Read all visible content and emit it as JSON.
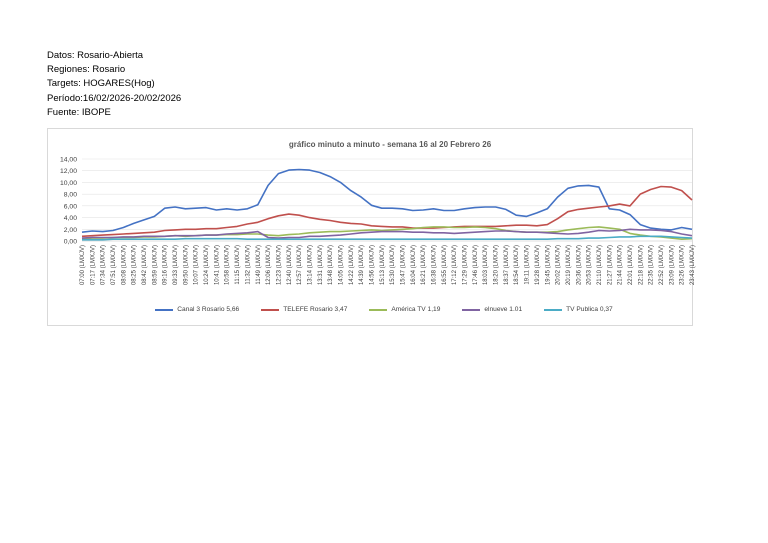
{
  "meta": {
    "datos": "Datos: Rosario-Abierta",
    "regiones": "Regiones: Rosario",
    "targets": "Targets: HOGARES(Hog)",
    "periodo": "Período:16/02/2026-20/02/2026",
    "fuente": "Fuente: IBOPE"
  },
  "chart_data": {
    "type": "line",
    "title": "gráfico minuto a minuto - semana 16 al 20 Febrero 26",
    "ylim": [
      0,
      14
    ],
    "yticks": [
      "0,00",
      "2,00",
      "4,00",
      "6,00",
      "8,00",
      "10,00",
      "12,00",
      "14,00"
    ],
    "grid": true,
    "legend_position": "bottom",
    "categories": [
      "07:00 (LMXJV)",
      "07:17 (LMXJV)",
      "07:34 (LMXJV)",
      "07:51 (LMXJV)",
      "08:08 (LMXJV)",
      "08:25 (LMXJV)",
      "08:42 (LMXJV)",
      "08:59 (LMXJV)",
      "09:16 (LMXJV)",
      "09:33 (LMXJV)",
      "09:50 (LMXJV)",
      "10:07 (LMXJV)",
      "10:24 (LMXJV)",
      "10:41 (LMXJV)",
      "10:58 (LMXJV)",
      "11:15 (LMXJV)",
      "11:32 (LMXJV)",
      "11:49 (LMXJV)",
      "12:06 (LMXJV)",
      "12:23 (LMXJV)",
      "12:40 (LMXJV)",
      "12:57 (LMXJV)",
      "13:14 (LMXJV)",
      "13:31 (LMXJV)",
      "13:48 (LMXJV)",
      "14:05 (LMXJV)",
      "14:22 (LMXJV)",
      "14:39 (LMXJV)",
      "14:56 (LMXJV)",
      "15:13 (LMXJV)",
      "15:30 (LMXJV)",
      "15:47 (LMXJV)",
      "16:04 (LMXJV)",
      "16:21 (LMXJV)",
      "16:38 (LMXJV)",
      "16:55 (LMXJV)",
      "17:12 (LMXJV)",
      "17:29 (LMXJV)",
      "17:46 (LMXJV)",
      "18:03 (LMXJV)",
      "18:20 (LMXJV)",
      "18:37 (LMXJV)",
      "18:54 (LMXJV)",
      "19:11 (LMXJV)",
      "19:28 (LMXJV)",
      "19:45 (LMXJV)",
      "20:02 (LMXJV)",
      "20:19 (LMXJV)",
      "20:36 (LMXJV)",
      "20:53 (LMXJV)",
      "21:10 (LMXJV)",
      "21:27 (LMXJV)",
      "21:44 (LMXJV)",
      "22:01 (LMXJV)",
      "22:18 (LMXJV)",
      "22:35 (LMXJV)",
      "22:52 (LMXJV)",
      "23:09 (LMXJV)",
      "23:26 (LMXJV)",
      "23:43 (LMXJV)"
    ],
    "series": [
      {
        "name": "Canal 3 Rosario 5,66",
        "color": "#4472c4",
        "values": [
          1.5,
          1.7,
          1.6,
          1.8,
          2.3,
          3.0,
          3.6,
          4.2,
          5.6,
          5.8,
          5.5,
          5.6,
          5.7,
          5.3,
          5.5,
          5.3,
          5.5,
          6.2,
          9.5,
          11.5,
          12.1,
          12.2,
          12.1,
          11.7,
          11.0,
          10.0,
          8.6,
          7.5,
          6.1,
          5.6,
          5.6,
          5.5,
          5.2,
          5.3,
          5.5,
          5.2,
          5.2,
          5.5,
          5.7,
          5.8,
          5.8,
          5.4,
          4.4,
          4.2,
          4.8,
          5.5,
          7.5,
          9.0,
          9.4,
          9.5,
          9.2,
          5.5,
          5.3,
          4.5,
          2.8,
          2.2,
          2.0,
          1.9,
          2.3,
          2.0
        ]
      },
      {
        "name": "TELEFE Rosario 3,47",
        "color": "#c0504d",
        "values": [
          0.8,
          0.9,
          1.0,
          1.1,
          1.2,
          1.3,
          1.4,
          1.5,
          1.8,
          1.9,
          2.0,
          2.0,
          2.1,
          2.1,
          2.3,
          2.5,
          2.9,
          3.2,
          3.8,
          4.3,
          4.6,
          4.4,
          4.0,
          3.7,
          3.5,
          3.2,
          3.0,
          2.9,
          2.6,
          2.5,
          2.4,
          2.4,
          2.2,
          2.2,
          2.2,
          2.3,
          2.4,
          2.5,
          2.5,
          2.5,
          2.5,
          2.6,
          2.7,
          2.7,
          2.6,
          2.8,
          3.8,
          5.0,
          5.4,
          5.6,
          5.8,
          6.0,
          6.3,
          6.0,
          8.0,
          8.8,
          9.3,
          9.2,
          8.6,
          7.0
        ]
      },
      {
        "name": "América TV 1,19",
        "color": "#9bbb59",
        "values": [
          0.4,
          0.5,
          0.5,
          0.6,
          0.6,
          0.6,
          0.7,
          0.7,
          0.8,
          0.9,
          0.8,
          0.9,
          1.0,
          1.0,
          1.1,
          1.1,
          1.2,
          1.2,
          1.0,
          0.9,
          1.1,
          1.2,
          1.4,
          1.5,
          1.6,
          1.6,
          1.7,
          1.8,
          1.9,
          1.8,
          1.9,
          2.0,
          2.1,
          2.3,
          2.4,
          2.4,
          2.3,
          2.3,
          2.4,
          2.3,
          2.1,
          1.8,
          1.6,
          1.5,
          1.5,
          1.5,
          1.6,
          1.9,
          2.1,
          2.3,
          2.4,
          2.2,
          2.0,
          1.3,
          1.0,
          0.8,
          0.7,
          0.5,
          0.3,
          0.4
        ]
      },
      {
        "name": "elnueve 1.01",
        "color": "#8064a2",
        "values": [
          0.5,
          0.6,
          0.6,
          0.6,
          0.7,
          0.7,
          0.8,
          0.8,
          0.8,
          0.9,
          0.9,
          0.9,
          1.0,
          1.0,
          1.2,
          1.3,
          1.4,
          1.6,
          0.6,
          0.5,
          0.6,
          0.6,
          0.8,
          0.8,
          0.9,
          1.0,
          1.2,
          1.4,
          1.5,
          1.6,
          1.6,
          1.6,
          1.5,
          1.5,
          1.4,
          1.4,
          1.3,
          1.4,
          1.5,
          1.6,
          1.7,
          1.7,
          1.6,
          1.5,
          1.5,
          1.4,
          1.3,
          1.2,
          1.3,
          1.5,
          1.8,
          1.7,
          1.8,
          2.0,
          1.9,
          1.9,
          1.8,
          1.6,
          1.2,
          0.9
        ]
      },
      {
        "name": "TV Publica 0,37",
        "color": "#4bacc6",
        "values": [
          0.2,
          0.2,
          0.2,
          0.3,
          0.3,
          0.3,
          0.3,
          0.3,
          0.3,
          0.3,
          0.4,
          0.4,
          0.4,
          0.4,
          0.4,
          0.4,
          0.3,
          0.3,
          0.3,
          0.3,
          0.3,
          0.3,
          0.3,
          0.3,
          0.3,
          0.3,
          0.3,
          0.3,
          0.3,
          0.3,
          0.3,
          0.3,
          0.3,
          0.3,
          0.3,
          0.3,
          0.3,
          0.3,
          0.3,
          0.3,
          0.3,
          0.3,
          0.3,
          0.3,
          0.3,
          0.3,
          0.4,
          0.4,
          0.4,
          0.5,
          0.5,
          0.6,
          0.7,
          0.7,
          0.8,
          0.8,
          0.8,
          0.7,
          0.6,
          0.5
        ]
      }
    ]
  }
}
